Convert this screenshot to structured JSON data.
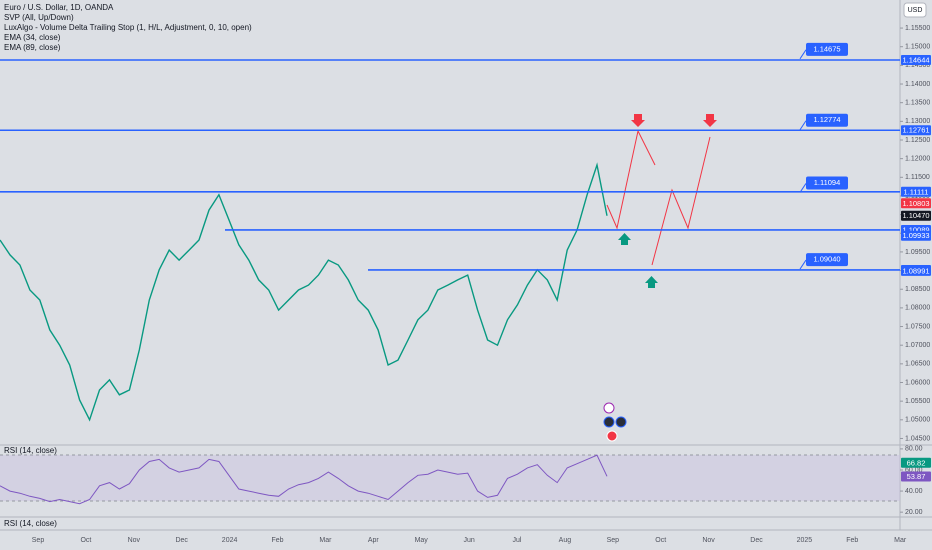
{
  "header": {
    "lines": [
      "Euro / U.S. Dollar, 1D, OANDA",
      "SVP (All, Up/Down)",
      "LuxAlgo - Volume Delta Trailing Stop (1, H/L, Adjustment, 0, 10, open)",
      "EMA (34, close)",
      "EMA (89, close)"
    ],
    "currency": "USD"
  },
  "chart_data": [
    {
      "type": "line",
      "series": [
        {
          "color": "#089981",
          "values": [
            1.0982,
            1.0942,
            1.0915,
            1.0848,
            1.0821,
            1.0741,
            1.07,
            1.0647,
            1.0553,
            1.05,
            1.058,
            1.0607,
            1.0567,
            1.058,
            1.0687,
            1.0821,
            1.0902,
            1.0955,
            1.0928,
            1.0955,
            1.0982,
            1.1062,
            1.1103,
            1.1036,
            1.0969,
            1.0928,
            1.0875,
            1.0848,
            1.0794,
            1.0821,
            1.0848,
            1.0861,
            1.0888,
            1.0928,
            1.0915,
            1.0875,
            1.0821,
            1.0794,
            1.0741,
            1.0647,
            1.066,
            1.0714,
            1.0768,
            1.0794,
            1.0848,
            1.0861,
            1.0875,
            1.0888,
            1.0794,
            1.0714,
            1.07,
            1.0768,
            1.0808,
            1.0861,
            1.0902,
            1.0875,
            1.0821,
            1.0955,
            1.1009,
            1.1103,
            1.1183,
            1.1047
          ]
        }
      ],
      "ylim": [
        1.04325,
        1.16252
      ],
      "yticks": [
        {
          "value": 1.045,
          "label": "1.04500"
        },
        {
          "value": 1.05,
          "label": "1.05000"
        },
        {
          "value": 1.055,
          "label": "1.05500"
        },
        {
          "value": 1.06,
          "label": "1.06000"
        },
        {
          "value": 1.065,
          "label": "1.06500"
        },
        {
          "value": 1.07,
          "label": "1.07000"
        },
        {
          "value": 1.075,
          "label": "1.07500"
        },
        {
          "value": 1.08,
          "label": "1.08000"
        },
        {
          "value": 1.085,
          "label": "1.08500"
        },
        {
          "value": 1.09,
          "label": "1.09000"
        },
        {
          "value": 1.095,
          "label": "1.09500"
        },
        {
          "value": 1.1,
          "label": "1.10000"
        },
        {
          "value": 1.105,
          "label": "1.10500"
        },
        {
          "value": 1.11,
          "label": "1.11000"
        },
        {
          "value": 1.115,
          "label": "1.11500"
        },
        {
          "value": 1.12,
          "label": "1.12000"
        },
        {
          "value": 1.125,
          "label": "1.12500"
        },
        {
          "value": 1.13,
          "label": "1.13000"
        },
        {
          "value": 1.135,
          "label": "1.13500"
        },
        {
          "value": 1.14,
          "label": "1.14000"
        },
        {
          "value": 1.145,
          "label": "1.14500"
        },
        {
          "value": 1.15,
          "label": "1.15000"
        },
        {
          "value": 1.155,
          "label": "1.15500"
        }
      ],
      "x_labels": [
        "Sep",
        "Oct",
        "Nov",
        "Dec",
        "2024",
        "Feb",
        "Mar",
        "Apr",
        "May",
        "Jun",
        "Jul",
        "Aug",
        "Sep",
        "Oct",
        "Nov",
        "Dec",
        "2025",
        "Feb",
        "Mar"
      ],
      "level_color": "#2962ff",
      "levels": [
        {
          "value": 1.14644,
          "callout": 1.14675
        },
        {
          "value": 1.12761,
          "callout": 1.12774
        },
        {
          "value": 1.11111,
          "callout": 1.11094
        },
        {
          "value": 1.10089
        },
        {
          "value": 1.09016,
          "callout": {
            "value": 1.0904,
            "label": "1.09040"
          }
        }
      ],
      "price_tags": [
        {
          "value": 1.10803,
          "color": "#f23645"
        },
        {
          "value": {
            "value": 1.1047,
            "label": "1.10470"
          },
          "color": "#131722"
        },
        {
          "value": 1.09933,
          "color": "#2962ff"
        },
        {
          "value": 1.08991,
          "color": "#2962ff"
        }
      ]
    },
    {
      "type": "line",
      "title": "RSI (14, close)",
      "series": [
        {
          "color": "#7e57c2",
          "values": [
            45,
            40,
            38,
            35,
            33,
            30,
            32,
            30,
            28,
            32,
            45,
            48,
            42,
            47,
            60,
            68,
            70,
            62,
            58,
            60,
            62,
            70,
            68,
            55,
            42,
            40,
            38,
            36,
            35,
            42,
            46,
            48,
            52,
            58,
            52,
            45,
            40,
            38,
            35,
            32,
            40,
            48,
            55,
            56,
            60,
            58,
            56,
            57,
            40,
            34,
            36,
            52,
            56,
            62,
            65,
            55,
            48,
            62,
            66,
            70,
            74,
            54
          ]
        }
      ],
      "ylim": [
        17.3,
        81.8
      ],
      "yticks": [
        {
          "value": 80,
          "label": "80.00"
        },
        {
          "value": 60,
          "label": "60.00"
        },
        {
          "value": 40,
          "label": "40.00"
        },
        {
          "value": 20,
          "label": "20.00"
        }
      ],
      "tags": [
        {
          "value": 66.82,
          "color": "#089981"
        },
        {
          "value": 53.87,
          "color": "#7e57c2"
        }
      ]
    }
  ],
  "second_pane_title": "RSI (14, close)"
}
